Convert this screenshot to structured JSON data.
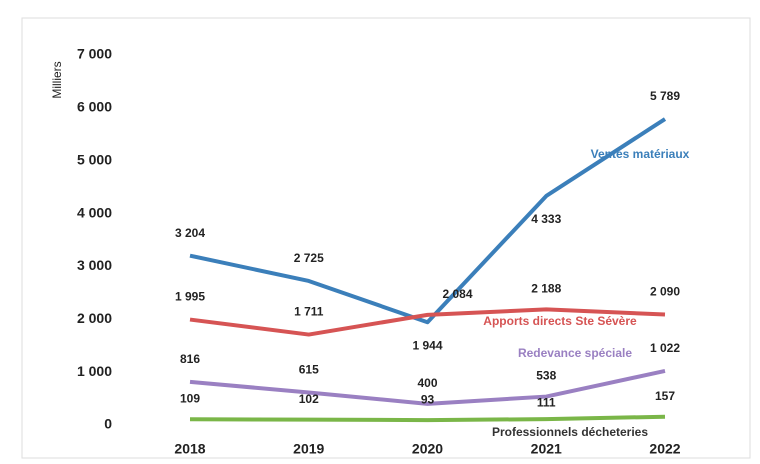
{
  "chart_data": {
    "type": "line",
    "y_label": "Milliers",
    "categories": [
      "2018",
      "2019",
      "2020",
      "2021",
      "2022"
    ],
    "ylim": [
      0,
      7000
    ],
    "yticks": [
      {
        "value": 0,
        "label": "0"
      },
      {
        "value": 1000,
        "label": "1 000"
      },
      {
        "value": 2000,
        "label": "2 000"
      },
      {
        "value": 3000,
        "label": "3 000"
      },
      {
        "value": 4000,
        "label": "4 000"
      },
      {
        "value": 5000,
        "label": "5 000"
      },
      {
        "value": 6000,
        "label": "6 000"
      },
      {
        "value": 7000,
        "label": "7 000"
      }
    ],
    "series": [
      {
        "name": "Ventes matériaux",
        "color": "#3b7fba",
        "values": [
          3204,
          2725,
          1944,
          4333,
          5789
        ],
        "value_labels": [
          "3 204",
          "2 725",
          "1 944",
          "4 333",
          "5 789"
        ]
      },
      {
        "name": "Apports directs Ste Sévère",
        "color": "#d65454",
        "values": [
          1995,
          1711,
          2084,
          2188,
          2090
        ],
        "value_labels": [
          "1 995",
          "1 711",
          "2 084",
          "2 188",
          "2 090"
        ]
      },
      {
        "name": "Redevance spéciale",
        "color": "#9a80c2",
        "values": [
          816,
          615,
          400,
          538,
          1022
        ],
        "value_labels": [
          "816",
          "615",
          "400",
          "538",
          "1 022"
        ]
      },
      {
        "name": "Professionnels décheteries",
        "color": "#7ab648",
        "values": [
          109,
          102,
          93,
          111,
          157
        ],
        "value_labels": [
          "109",
          "102",
          "93",
          "111",
          "157"
        ]
      }
    ]
  }
}
